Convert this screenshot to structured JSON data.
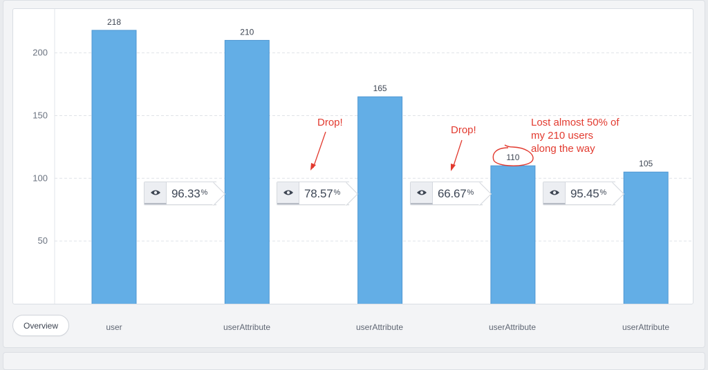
{
  "chart_data": {
    "type": "bar",
    "categories": [
      "user",
      "userAttribute",
      "userAttribute",
      "userAttribute",
      "userAttribute"
    ],
    "values": [
      218,
      210,
      165,
      110,
      105
    ],
    "data_labels": [
      "218",
      "210",
      "165",
      "110",
      "105"
    ],
    "yticks": [
      50,
      100,
      150,
      200
    ],
    "ylim": [
      0,
      235
    ],
    "grid": true,
    "bar_color": "#63aee6",
    "conversion_rates": [
      {
        "value": "96.33",
        "unit": "%"
      },
      {
        "value": "78.57",
        "unit": "%"
      },
      {
        "value": "66.67",
        "unit": "%"
      },
      {
        "value": "95.45",
        "unit": "%"
      }
    ],
    "annotations": [
      {
        "text": "Drop!"
      },
      {
        "text": "Drop!"
      },
      {
        "lines": [
          "Lost almost 50% of",
          "my 210 users",
          "along the way"
        ]
      }
    ],
    "annotation_color": "#e23a2f"
  },
  "controls": {
    "overview_label": "Overview"
  },
  "icons": {
    "conversion": "eye-icon"
  }
}
